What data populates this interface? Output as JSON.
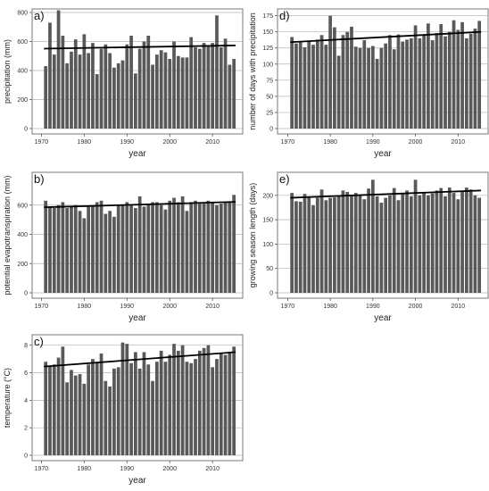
{
  "chart_data": [
    {
      "type": "bar",
      "panel_label": "a)",
      "xlabel": "year",
      "ylabel": "precipitation (mm)",
      "x": [
        1971,
        1972,
        1973,
        1974,
        1975,
        1976,
        1977,
        1978,
        1979,
        1980,
        1981,
        1982,
        1983,
        1984,
        1985,
        1986,
        1987,
        1988,
        1989,
        1990,
        1991,
        1992,
        1993,
        1994,
        1995,
        1996,
        1997,
        1998,
        1999,
        2000,
        2001,
        2002,
        2003,
        2004,
        2005,
        2006,
        2007,
        2008,
        2009,
        2010,
        2011,
        2012,
        2013,
        2014,
        2015
      ],
      "values": [
        430,
        730,
        510,
        815,
        640,
        450,
        530,
        615,
        510,
        650,
        520,
        590,
        375,
        550,
        580,
        520,
        420,
        450,
        470,
        580,
        640,
        380,
        550,
        600,
        640,
        440,
        510,
        540,
        525,
        480,
        600,
        500,
        490,
        490,
        630,
        560,
        550,
        590,
        570,
        590,
        780,
        560,
        620,
        440,
        480
      ],
      "trend": [
        551,
        573
      ],
      "ylim": [
        0,
        800
      ],
      "yticks": [
        0,
        200,
        400,
        600,
        800
      ],
      "xticks": [
        1970,
        1980,
        1990,
        2000,
        2010
      ],
      "grid": true
    },
    {
      "type": "bar",
      "panel_label": "b)",
      "xlabel": "year",
      "ylabel": "potential evapotranspiration (mm)",
      "x": [
        1971,
        1972,
        1973,
        1974,
        1975,
        1976,
        1977,
        1978,
        1979,
        1980,
        1981,
        1982,
        1983,
        1984,
        1985,
        1986,
        1987,
        1988,
        1989,
        1990,
        1991,
        1992,
        1993,
        1994,
        1995,
        1996,
        1997,
        1998,
        1999,
        2000,
        2001,
        2002,
        2003,
        2004,
        2005,
        2006,
        2007,
        2008,
        2009,
        2010,
        2011,
        2012,
        2013,
        2014,
        2015
      ],
      "values": [
        630,
        590,
        580,
        600,
        620,
        580,
        590,
        600,
        560,
        510,
        590,
        600,
        620,
        630,
        540,
        560,
        520,
        600,
        600,
        620,
        600,
        580,
        660,
        590,
        610,
        620,
        620,
        600,
        570,
        630,
        650,
        620,
        660,
        560,
        620,
        630,
        610,
        610,
        630,
        620,
        600,
        610,
        620,
        620,
        670
      ],
      "trend": [
        585,
        622
      ],
      "ylim": [
        0,
        800
      ],
      "yticks": [
        0,
        200,
        400,
        600
      ],
      "xticks": [
        1970,
        1980,
        1990,
        2000,
        2010
      ],
      "grid": true
    },
    {
      "type": "bar",
      "panel_label": "c)",
      "xlabel": "year",
      "ylabel": "temperature (°C)",
      "x": [
        1971,
        1972,
        1973,
        1974,
        1975,
        1976,
        1977,
        1978,
        1979,
        1980,
        1981,
        1982,
        1983,
        1984,
        1985,
        1986,
        1987,
        1988,
        1989,
        1990,
        1991,
        1992,
        1993,
        1994,
        1995,
        1996,
        1997,
        1998,
        1999,
        2000,
        2001,
        2002,
        2003,
        2004,
        2005,
        2006,
        2007,
        2008,
        2009,
        2010,
        2011,
        2012,
        2013,
        2014,
        2015
      ],
      "values": [
        6.8,
        6.5,
        6.6,
        7.1,
        7.9,
        5.3,
        6.2,
        5.8,
        5.9,
        5.2,
        6.6,
        7.0,
        6.7,
        7.4,
        5.4,
        5.0,
        6.3,
        6.4,
        8.2,
        8.1,
        6.7,
        7.5,
        6.3,
        7.5,
        6.6,
        5.4,
        6.8,
        7.6,
        6.8,
        7.3,
        8.1,
        7.6,
        8.0,
        6.8,
        6.7,
        7.0,
        7.6,
        7.8,
        8.0,
        6.4,
        7.0,
        7.4,
        7.3,
        7.5,
        7.9
      ],
      "trend": [
        6.45,
        7.5
      ],
      "ylim": [
        0,
        8.5
      ],
      "yticks": [
        0,
        2,
        4,
        6,
        8
      ],
      "xticks": [
        1970,
        1980,
        1990,
        2000,
        2010
      ],
      "grid": true
    },
    {
      "type": "bar",
      "panel_label": "d)",
      "xlabel": "year",
      "ylabel": "number of days with precipitation",
      "x": [
        1971,
        1972,
        1973,
        1974,
        1975,
        1976,
        1977,
        1978,
        1979,
        1980,
        1981,
        1982,
        1983,
        1984,
        1985,
        1986,
        1987,
        1988,
        1989,
        1990,
        1991,
        1992,
        1993,
        1994,
        1995,
        1996,
        1997,
        1998,
        1999,
        2000,
        2001,
        2002,
        2003,
        2004,
        2005,
        2006,
        2007,
        2008,
        2009,
        2010,
        2011,
        2012,
        2013,
        2014,
        2015
      ],
      "values": [
        142,
        132,
        135,
        126,
        135,
        130,
        138,
        145,
        130,
        175,
        157,
        113,
        145,
        150,
        158,
        127,
        125,
        137,
        125,
        128,
        108,
        125,
        132,
        145,
        123,
        146,
        135,
        138,
        140,
        160,
        140,
        145,
        163,
        137,
        148,
        162,
        143,
        150,
        168,
        153,
        165,
        140,
        147,
        155,
        167
      ],
      "trend": [
        134,
        150
      ],
      "ylim": [
        0,
        180
      ],
      "yticks": [
        0,
        25,
        50,
        75,
        100,
        125,
        150,
        175
      ],
      "xticks": [
        1970,
        1980,
        1990,
        2000,
        2010
      ],
      "grid": true
    },
    {
      "type": "bar",
      "panel_label": "e)",
      "xlabel": "year",
      "ylabel": "growing season length (days)",
      "x": [
        1971,
        1972,
        1973,
        1974,
        1975,
        1976,
        1977,
        1978,
        1979,
        1980,
        1981,
        1982,
        1983,
        1984,
        1985,
        1986,
        1987,
        1988,
        1989,
        1990,
        1991,
        1992,
        1993,
        1994,
        1995,
        1996,
        1997,
        1998,
        1999,
        2000,
        2001,
        2002,
        2003,
        2004,
        2005,
        2006,
        2007,
        2008,
        2009,
        2010,
        2011,
        2012,
        2013,
        2014,
        2015
      ],
      "values": [
        205,
        188,
        187,
        203,
        195,
        180,
        195,
        212,
        190,
        195,
        196,
        200,
        210,
        207,
        200,
        205,
        200,
        192,
        214,
        232,
        198,
        185,
        195,
        200,
        215,
        190,
        204,
        210,
        198,
        232,
        200,
        207,
        200,
        204,
        210,
        215,
        198,
        216,
        205,
        192,
        208,
        216,
        212,
        200,
        195
      ],
      "trend": [
        195,
        210
      ],
      "ylim": [
        0,
        240
      ],
      "yticks": [
        0,
        50,
        100,
        150,
        200
      ],
      "xticks": [
        1970,
        1980,
        1990,
        2000,
        2010
      ],
      "grid": true
    }
  ]
}
